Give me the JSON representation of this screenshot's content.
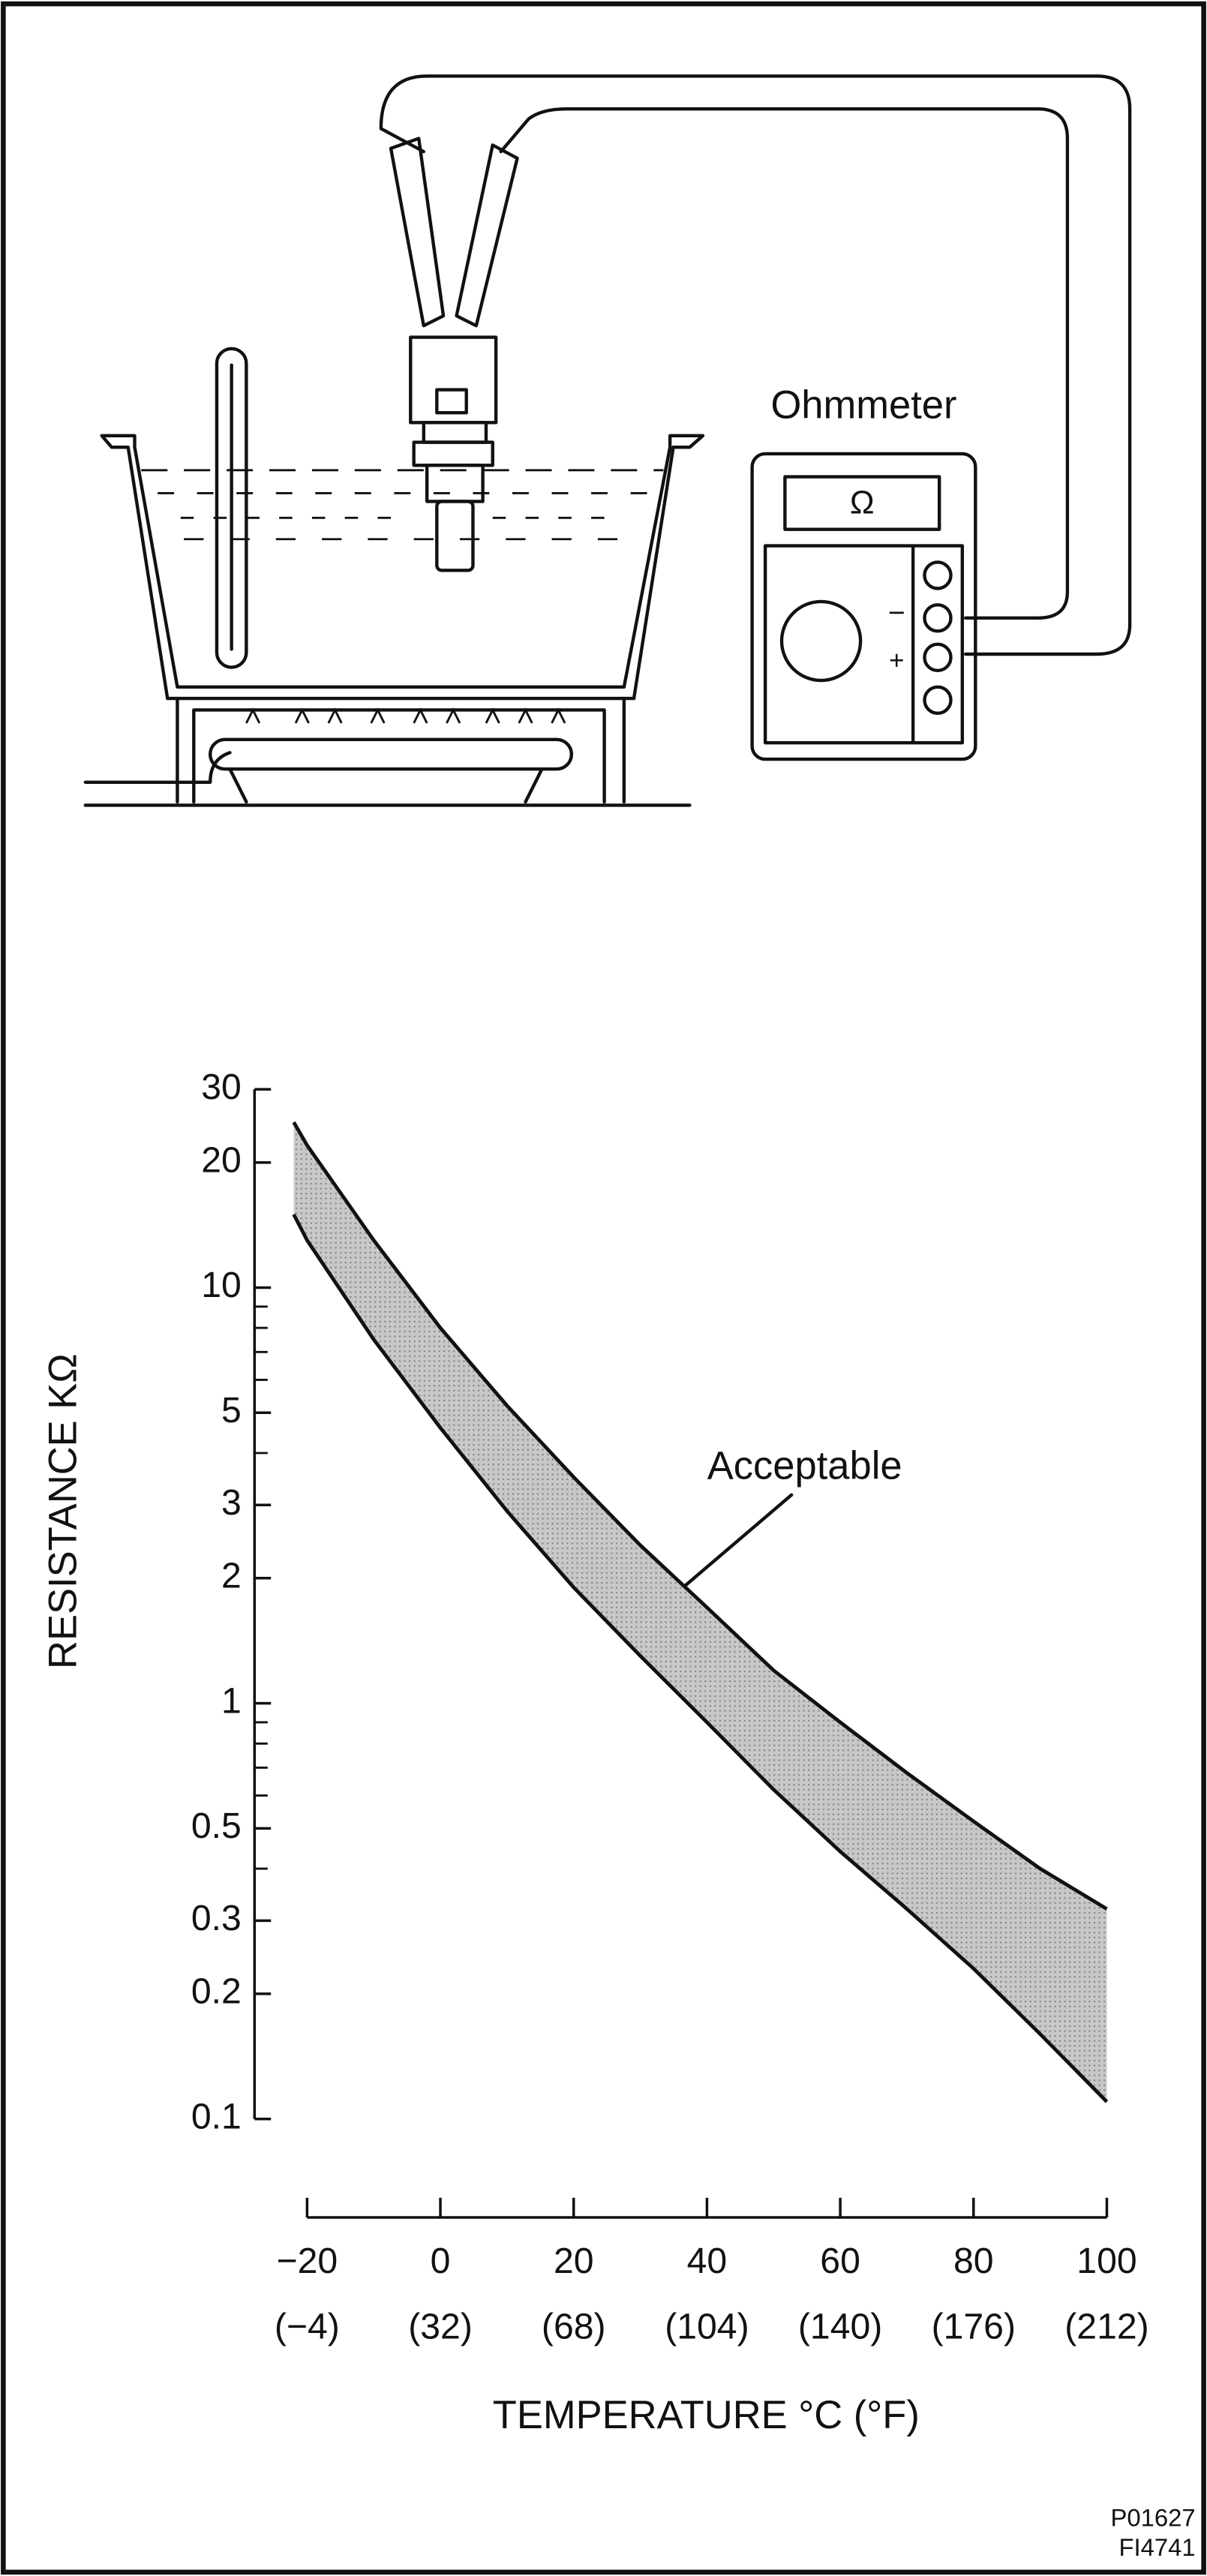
{
  "diagram": {
    "meter_label": "Ohmmeter",
    "display": "Ω",
    "minus": "−",
    "plus": "+"
  },
  "codes": [
    "P01627",
    "FI4741"
  ],
  "chart_data": {
    "type": "band",
    "x_label": "TEMPERATURE °C (°F)",
    "y_label": "RESISTANCE KΩ",
    "annotation": "Acceptable",
    "x": [
      -22,
      -20,
      -10,
      0,
      10,
      20,
      30,
      40,
      50,
      60,
      70,
      80,
      90,
      100
    ],
    "series": [
      {
        "color": "#111111",
        "values": [
          25,
          22,
          13,
          8,
          5.2,
          3.5,
          2.4,
          1.7,
          1.2,
          0.9,
          0.68,
          0.52,
          0.4,
          0.32
        ]
      },
      {
        "color": "#111111",
        "values": [
          15,
          13,
          7.5,
          4.6,
          2.9,
          1.9,
          1.3,
          0.9,
          0.62,
          0.44,
          0.32,
          0.23,
          0.16,
          0.11
        ]
      }
    ],
    "band_color": "#c8c8c8",
    "xlim": [
      -20,
      100
    ],
    "xticks": [
      {
        "value": -20,
        "label": "−20"
      },
      0,
      20,
      40,
      60,
      80,
      100
    ],
    "xticks_f": [
      "(−4)",
      "(32)",
      "(68)",
      "(104)",
      "(140)",
      "(176)",
      "(212)"
    ],
    "ylim": [
      0.1,
      30
    ],
    "ylog": true,
    "yticks": [
      0.1,
      0.2,
      0.3,
      0.5,
      1,
      2,
      3,
      5,
      10,
      20,
      30
    ],
    "minor_yticks": [
      0.4,
      0.6,
      0.7,
      0.8,
      0.9,
      4,
      6,
      7,
      8,
      9
    ],
    "grid": false
  }
}
